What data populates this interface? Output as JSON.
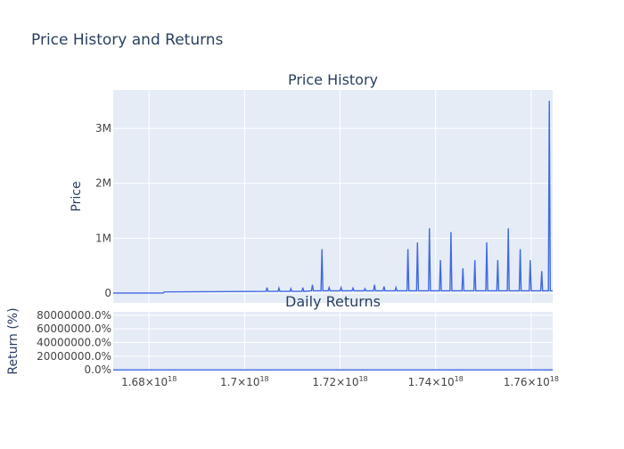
{
  "figure": {
    "title": "Price History and Returns"
  },
  "chart_data": [
    {
      "type": "line",
      "title": "Price History",
      "xlabel": "",
      "ylabel": "Price",
      "xlim": [
        1.6725e+18,
        1.7645e+18
      ],
      "ylim": [
        -180000,
        3700000
      ],
      "grid": true,
      "line_color": "#4169e1",
      "y_ticks": [
        {
          "value": 0,
          "label": "0"
        },
        {
          "value": 1000000,
          "label": "1M"
        },
        {
          "value": 2000000,
          "label": "2M"
        },
        {
          "value": 3000000,
          "label": "3M"
        }
      ],
      "x_ticks": [
        1.68e+18,
        1.7e+18,
        1.72e+18,
        1.74e+18,
        1.76e+18
      ],
      "series": [
        {
          "values_note_free": true,
          "x": [
            1.6725e+18,
            1.683e+18,
            1.6832e+18,
            1.7045e+18,
            1.7047e+18,
            1.7049e+18,
            1.707e+18,
            1.7072e+18,
            1.7074e+18,
            1.7095e+18,
            1.7097e+18,
            1.7099e+18,
            1.712e+18,
            1.7122e+18,
            1.7124e+18,
            1.714e+18,
            1.7142e+18,
            1.7144e+18,
            1.716e+18,
            1.7162e+18,
            1.7164e+18,
            1.7175e+18,
            1.7177e+18,
            1.7179e+18,
            1.72e+18,
            1.7202e+18,
            1.7204e+18,
            1.7225e+18,
            1.7227e+18,
            1.7229e+18,
            1.725e+18,
            1.7252e+18,
            1.7254e+18,
            1.727e+18,
            1.7272e+18,
            1.7274e+18,
            1.729e+18,
            1.7292e+18,
            1.7294e+18,
            1.7315e+18,
            1.7317e+18,
            1.7319e+18,
            1.734e+18,
            1.7342e+18,
            1.7344e+18,
            1.736e+18,
            1.7362e+18,
            1.7364e+18,
            1.7385e+18,
            1.7387e+18,
            1.7389e+18,
            1.7408e+18,
            1.741e+18,
            1.7412e+18,
            1.743e+18,
            1.7432e+18,
            1.7434e+18,
            1.7455e+18,
            1.7457e+18,
            1.7459e+18,
            1.748e+18,
            1.7482e+18,
            1.7484e+18,
            1.7505e+18,
            1.7507e+18,
            1.7509e+18,
            1.7528e+18,
            1.753e+18,
            1.7532e+18,
            1.755e+18,
            1.7552e+18,
            1.7554e+18,
            1.7575e+18,
            1.7577e+18,
            1.7579e+18,
            1.7596e+18,
            1.7598e+18,
            1.76e+18,
            1.762e+18,
            1.7622e+18,
            1.7624e+18,
            1.7636e+18,
            1.7638e+18,
            1.764e+18,
            1.7645e+18
          ],
          "y": [
            0,
            0,
            20000,
            30000,
            100000,
            30000,
            30000,
            90000,
            30000,
            30000,
            80000,
            30000,
            30000,
            100000,
            30000,
            40000,
            150000,
            40000,
            40000,
            800000,
            40000,
            40000,
            100000,
            40000,
            40000,
            100000,
            40000,
            40000,
            90000,
            40000,
            40000,
            80000,
            40000,
            40000,
            150000,
            40000,
            40000,
            120000,
            40000,
            40000,
            100000,
            40000,
            40000,
            800000,
            40000,
            40000,
            920000,
            40000,
            40000,
            1180000,
            40000,
            40000,
            600000,
            40000,
            40000,
            1110000,
            40000,
            40000,
            450000,
            40000,
            40000,
            600000,
            40000,
            40000,
            920000,
            40000,
            40000,
            600000,
            40000,
            40000,
            1180000,
            40000,
            40000,
            800000,
            40000,
            40000,
            600000,
            40000,
            40000,
            400000,
            40000,
            40000,
            3500000,
            40000,
            40000
          ]
        }
      ]
    },
    {
      "type": "line",
      "title": "Daily Returns",
      "xlabel": "",
      "ylabel": "Return (%)",
      "xlim": [
        1.6725e+18,
        1.7645e+18
      ],
      "ylim": [
        -1000000,
        85000000
      ],
      "grid": true,
      "line_color": "#4169e1",
      "y_ticks": [
        {
          "value": 0,
          "label": "0.0%"
        },
        {
          "value": 20000000,
          "label": "20000000.0%"
        },
        {
          "value": 40000000,
          "label": "40000000.0%"
        },
        {
          "value": 60000000,
          "label": "60000000.0%"
        },
        {
          "value": 80000000,
          "label": "80000000.0%"
        }
      ],
      "x_ticks": [
        {
          "value": 1.68e+18,
          "mantissa": "1.68",
          "exponent": "18"
        },
        {
          "value": 1.7e+18,
          "mantissa": "1.7",
          "exponent": "18"
        },
        {
          "value": 1.72e+18,
          "mantissa": "1.72",
          "exponent": "18"
        },
        {
          "value": 1.74e+18,
          "mantissa": "1.74",
          "exponent": "18"
        },
        {
          "value": 1.76e+18,
          "mantissa": "1.76",
          "exponent": "18"
        }
      ],
      "times_symbol": "×10",
      "series": [
        {
          "x": [
            1.6725e+18,
            1.7e+18,
            1.72e+18,
            1.74e+18,
            1.752e+18,
            1.756e+18,
            1.76e+18,
            1.7645e+18
          ],
          "y": [
            0,
            0,
            0,
            0,
            0,
            0,
            0,
            0
          ]
        }
      ]
    }
  ]
}
